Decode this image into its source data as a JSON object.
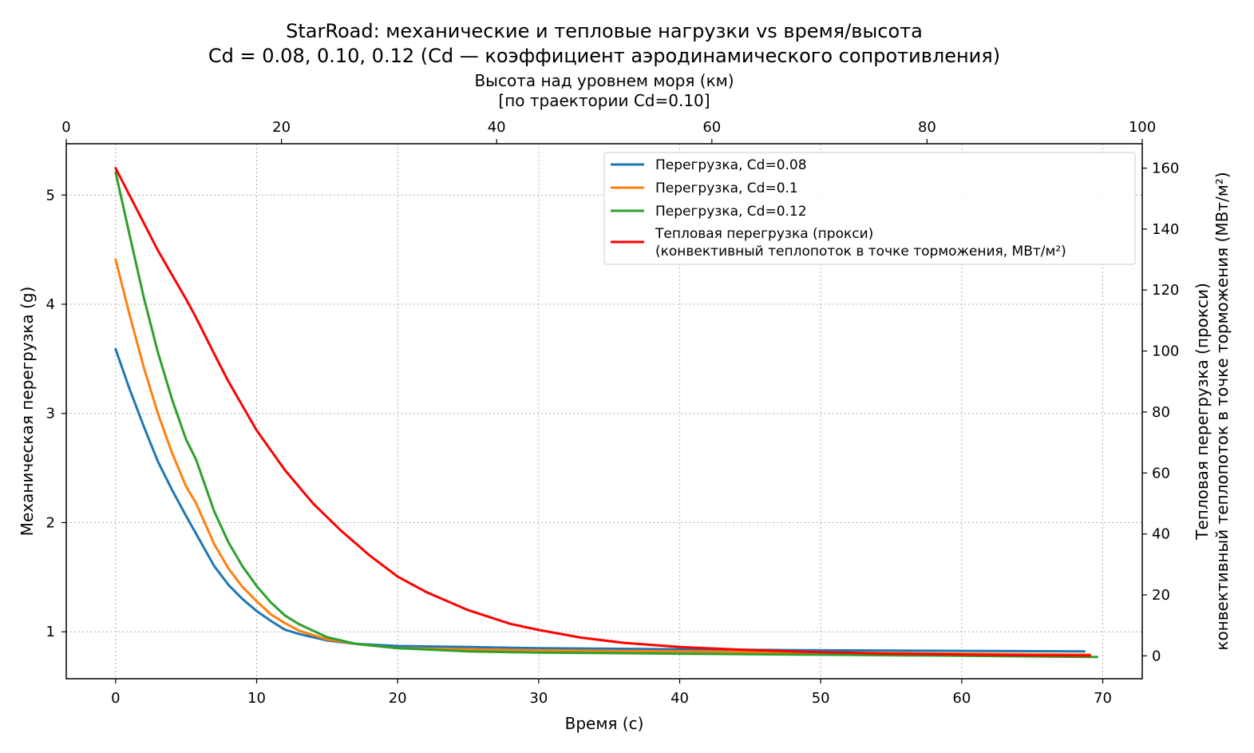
{
  "chart_data": {
    "type": "line",
    "title": "StarRoad: механические и тепловые нагрузки vs время/высота",
    "subtitle": "Cd = 0.08, 0.10, 0.12 (Cd — коэффициент аэродинамического сопротивления)",
    "xlabel": "Время (с)",
    "ylabel": "Механическая перегрузка (g)",
    "y2label_line1": "Тепловая перегрузка (прокси)",
    "y2label_line2": "конвективный теплопоток в точке торможения (МВт/м²)",
    "x2label_line1": "Высота над уровнем моря (км)",
    "x2label_line2": "[по траектории Cd=0.10]",
    "xlim": [
      -3.5,
      72.8
    ],
    "ylim": [
      0.57,
      5.47
    ],
    "y2lim": [
      -7.5,
      168
    ],
    "x2lim": [
      0,
      100
    ],
    "xticks": [
      0,
      10,
      20,
      30,
      40,
      50,
      60,
      70
    ],
    "yticks": [
      1,
      2,
      3,
      4,
      5
    ],
    "y2ticks": [
      0,
      20,
      40,
      60,
      80,
      100,
      120,
      140,
      160
    ],
    "x2ticks": [
      0,
      20,
      40,
      60,
      80,
      100
    ],
    "grid": true,
    "legend_position": "top-right",
    "series": [
      {
        "name": "Перегрузка, Cd=0.08",
        "color": "#1f77b4",
        "axis": "left",
        "x": [
          0,
          1,
          2,
          3,
          4,
          5,
          5.7,
          7,
          8,
          9,
          10,
          11,
          12,
          13,
          15,
          17,
          20,
          25,
          30,
          40,
          50,
          60,
          68.7
        ],
        "y": [
          3.59,
          3.22,
          2.88,
          2.56,
          2.3,
          2.06,
          1.9,
          1.6,
          1.43,
          1.3,
          1.19,
          1.1,
          1.02,
          0.98,
          0.92,
          0.89,
          0.87,
          0.86,
          0.85,
          0.84,
          0.83,
          0.825,
          0.82
        ]
      },
      {
        "name": "Перегрузка, Cd=0.1",
        "color": "#ff7f0e",
        "axis": "left",
        "x": [
          0,
          1,
          2,
          3,
          4,
          5,
          5.7,
          7,
          8,
          9,
          10,
          11,
          12,
          13,
          15,
          17,
          20,
          25,
          30,
          40,
          50,
          60,
          69.1
        ],
        "y": [
          4.41,
          3.9,
          3.42,
          3.0,
          2.64,
          2.33,
          2.18,
          1.8,
          1.58,
          1.41,
          1.28,
          1.16,
          1.08,
          1.01,
          0.93,
          0.89,
          0.85,
          0.84,
          0.83,
          0.82,
          0.81,
          0.8,
          0.79
        ]
      },
      {
        "name": "Перегрузка, Cd=0.12",
        "color": "#2ca02c",
        "axis": "left",
        "x": [
          0,
          1,
          2,
          3,
          4,
          5,
          5.7,
          7,
          8,
          9,
          10,
          11,
          12,
          13,
          15,
          17,
          20,
          25,
          30,
          40,
          50,
          60,
          69.6
        ],
        "y": [
          5.21,
          4.63,
          4.06,
          3.56,
          3.13,
          2.76,
          2.58,
          2.1,
          1.82,
          1.6,
          1.42,
          1.27,
          1.15,
          1.07,
          0.95,
          0.89,
          0.85,
          0.82,
          0.81,
          0.8,
          0.79,
          0.78,
          0.77
        ]
      },
      {
        "name": "Тепловая перегрузка (прокси)",
        "name_line2": "(конвективный теплопоток в точке торможения, МВт/м²)",
        "color": "#ff0000",
        "axis": "right",
        "x": [
          0,
          1,
          2,
          3,
          4,
          5,
          5.7,
          7,
          8,
          10,
          12,
          14,
          16,
          18,
          20,
          22,
          25,
          28,
          30,
          33,
          36,
          40,
          45,
          50,
          55,
          60,
          65,
          69.1
        ],
        "y": [
          160,
          151,
          142,
          133,
          125,
          117,
          111,
          99,
          90,
          74,
          61,
          50,
          41,
          33,
          26,
          21,
          15,
          10.5,
          8.5,
          6,
          4.3,
          2.9,
          1.9,
          1.2,
          0.7,
          0.4,
          0.2,
          0.1
        ]
      }
    ]
  }
}
